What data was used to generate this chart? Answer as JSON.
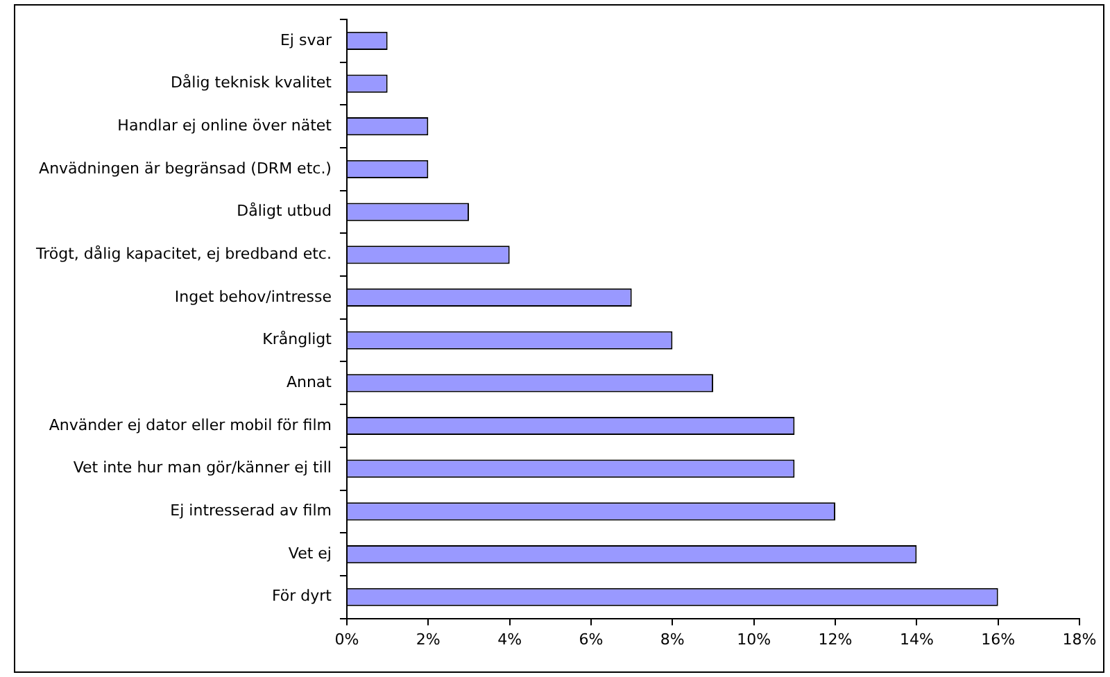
{
  "chart_data": {
    "type": "bar",
    "orientation": "horizontal",
    "categories": [
      "Ej svar",
      "Dålig teknisk kvalitet",
      "Handlar ej online över nätet",
      "Anvädningen är begränsad (DRM etc.)",
      "Dåligt utbud",
      "Trögt, dålig kapacitet, ej bredband etc.",
      "Inget behov/intresse",
      "Krångligt",
      "Annat",
      "Använder ej dator eller mobil för film",
      "Vet inte hur man gör/känner ej till",
      "Ej intresserad av film",
      "Vet ej",
      "För dyrt"
    ],
    "values": [
      1,
      1,
      2,
      2,
      3,
      4,
      7,
      8,
      9,
      11,
      11,
      12,
      14,
      16
    ],
    "color": "#9999ff",
    "xlim": [
      0,
      18
    ],
    "xticks": [
      {
        "value": 0,
        "label": "0%"
      },
      {
        "value": 2,
        "label": "2%"
      },
      {
        "value": 4,
        "label": "4%"
      },
      {
        "value": 6,
        "label": "6%"
      },
      {
        "value": 8,
        "label": "8%"
      },
      {
        "value": 10,
        "label": "10%"
      },
      {
        "value": 12,
        "label": "12%"
      },
      {
        "value": 14,
        "label": "14%"
      },
      {
        "value": 16,
        "label": "16%"
      },
      {
        "value": 18,
        "label": "18%"
      }
    ],
    "grid": false,
    "legend": false
  }
}
